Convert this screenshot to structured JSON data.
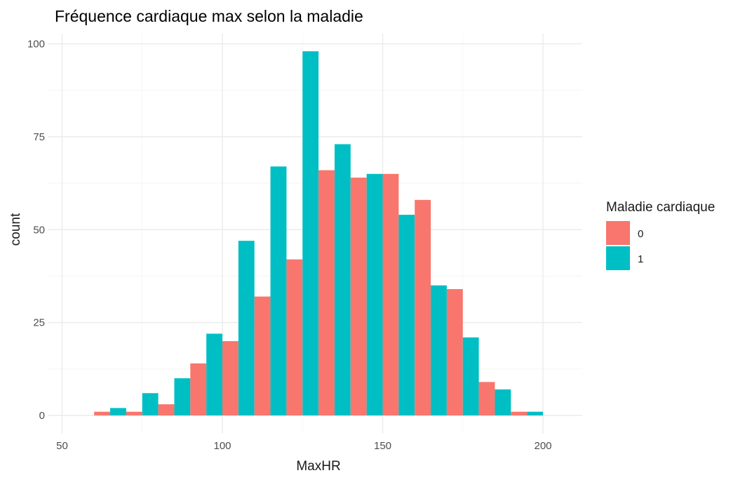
{
  "chart_data": {
    "type": "bar",
    "title": "Fréquence cardiaque max selon la maladie",
    "xlabel": "MaxHR",
    "ylabel": "count",
    "xlim": [
      50,
      210
    ],
    "ylim": [
      0,
      100
    ],
    "x_ticks": [
      50,
      100,
      150,
      200
    ],
    "y_ticks": [
      0,
      25,
      50,
      75,
      100
    ],
    "grid": true,
    "bin_width": 10,
    "bin_centers": [
      65,
      75,
      85,
      95,
      105,
      115,
      125,
      135,
      145,
      155,
      165,
      175,
      185,
      195
    ],
    "legend": {
      "title": "Maladie cardiaque",
      "position": "right",
      "entries": [
        "0",
        "1"
      ]
    },
    "series": [
      {
        "name": "0",
        "color": "#F8766D",
        "values": [
          1,
          1,
          3,
          14,
          20,
          32,
          42,
          66,
          64,
          65,
          58,
          34,
          9,
          1
        ]
      },
      {
        "name": "1",
        "color": "#00BFC4",
        "values": [
          2,
          6,
          10,
          22,
          47,
          67,
          98,
          73,
          65,
          54,
          35,
          21,
          7,
          1
        ]
      }
    ]
  }
}
